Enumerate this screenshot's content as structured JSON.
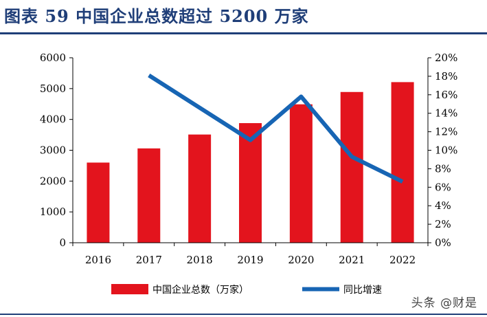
{
  "header": {
    "title": "图表 59  中国企业总数超过 5200 万家"
  },
  "watermark": "头条 @财是",
  "colors": {
    "title": "#1f3e78",
    "bar": "#e3141d",
    "line": "#1765b4",
    "axis": "#000000"
  },
  "chart_data": {
    "type": "bar",
    "categories": [
      "2016",
      "2017",
      "2018",
      "2019",
      "2020",
      "2021",
      "2022"
    ],
    "series": [
      {
        "name": "中国企业总数（万家）",
        "type": "bar",
        "axis": "left",
        "values": [
          2600,
          3060,
          3510,
          3880,
          4490,
          4890,
          5210
        ]
      },
      {
        "name": "同比增速",
        "type": "line",
        "axis": "right",
        "values": [
          null,
          18.1,
          null,
          11.1,
          15.8,
          9.3,
          6.6
        ]
      }
    ],
    "y_left": {
      "ylim": [
        0,
        6000
      ],
      "ticks": [
        "0",
        "1000",
        "2000",
        "3000",
        "4000",
        "5000",
        "6000"
      ]
    },
    "y_right": {
      "ylim": [
        0,
        20
      ],
      "ticks": [
        "0%",
        "2%",
        "4%",
        "6%",
        "8%",
        "10%",
        "12%",
        "14%",
        "16%",
        "18%",
        "20%"
      ]
    },
    "grid": false,
    "legend_position": "bottom"
  }
}
